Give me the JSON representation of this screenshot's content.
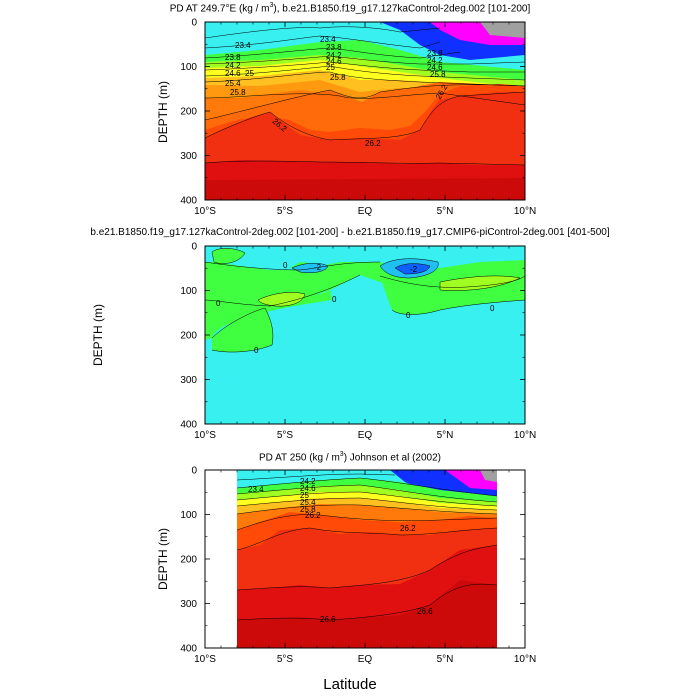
{
  "figure": {
    "xlabel": "Latitude"
  },
  "chart_data": [
    {
      "type": "contour",
      "title_parts": [
        "PD AT 249.7°E (kg / m",
        "3",
        "), b.e21.B1850.f19_g17.127kaControl-2deg.002 [101-200]"
      ],
      "ylabel": "DEPTH (m)",
      "xlim": [
        -10,
        10
      ],
      "ylim": [
        0,
        400
      ],
      "yreversed": true,
      "x_ticks": [
        "10°S",
        "5°S",
        "EQ",
        "5°N",
        "10°N"
      ],
      "y_ticks": [
        "0",
        "100",
        "200",
        "300",
        "400"
      ],
      "contour_labels": [
        "23.4",
        "23.4",
        "23.8",
        "24.2",
        "24.6",
        "25",
        "25.4",
        "25.8",
        "23.8",
        "24.2",
        "24.6",
        "25",
        "25.4",
        "25.8",
        "26.2",
        "26.2",
        "26.2",
        "26.6"
      ],
      "isopycnal_depths": [
        {
          "x": [
            -10,
            -5,
            0,
            4,
            10
          ],
          "y": [
            20,
            20,
            15,
            30,
            10
          ],
          "label": "23.4"
        },
        {
          "x": [
            -10,
            -5,
            0,
            4,
            10
          ],
          "y": [
            60,
            55,
            45,
            70,
            70
          ],
          "label": "23.8"
        },
        {
          "x": [
            -10,
            -5,
            0,
            4,
            10
          ],
          "y": [
            100,
            95,
            105,
            80,
            85
          ],
          "label": "25.4"
        },
        {
          "x": [
            -10,
            -5,
            0,
            4,
            10
          ],
          "y": [
            210,
            160,
            170,
            120,
            140
          ],
          "label": "25.8"
        },
        {
          "x": [
            -10,
            -5,
            0,
            4,
            10
          ],
          "y": [
            290,
            260,
            270,
            210,
            230
          ],
          "label": "26.2"
        }
      ]
    },
    {
      "type": "contour",
      "title": "b.e21.B1850.f19_g17.127kaControl-2deg.002 [101-200] - b.e21.B1850.f19_g17.CMIP6-piControl-2deg.001 [401-500]",
      "ylabel": "DEPTH (m)",
      "xlim": [
        -10,
        10
      ],
      "ylim": [
        0,
        400
      ],
      "yreversed": true,
      "x_ticks": [
        "10°S",
        "5°S",
        "EQ",
        "5°N",
        "10°N"
      ],
      "y_ticks": [
        "0",
        "100",
        "200",
        "300",
        "400"
      ],
      "contour_labels": [
        "0",
        "-2",
        "-2",
        "0",
        "0",
        "0",
        "0",
        "0"
      ]
    },
    {
      "type": "contour",
      "title_parts": [
        "PD AT 250 (kg / m",
        "3",
        ") Johnson et al (2002)"
      ],
      "ylabel": "DEPTH (m)",
      "xlim": [
        -10,
        10
      ],
      "ylim": [
        0,
        400
      ],
      "yreversed": true,
      "data_xlim": [
        -8,
        8
      ],
      "x_ticks": [
        "10°S",
        "5°S",
        "EQ",
        "5°N",
        "10°N"
      ],
      "y_ticks": [
        "0",
        "100",
        "200",
        "300",
        "400"
      ],
      "contour_labels": [
        "23.4",
        "24.2",
        "24.6",
        "25",
        "25.4",
        "25.8",
        "26.2",
        "26.2",
        "26.6",
        "26.6"
      ]
    }
  ],
  "colors": {
    "ocean_cyan": "#38f0f0",
    "green": "#40ff40",
    "yellow": "#ffff20",
    "orange": "#ff6a0a",
    "red": "#ee1111",
    "dark_red": "#cc0a0a",
    "blue": "#1030ff",
    "magenta": "#ff00ff",
    "gray": "#a0a0a0"
  }
}
